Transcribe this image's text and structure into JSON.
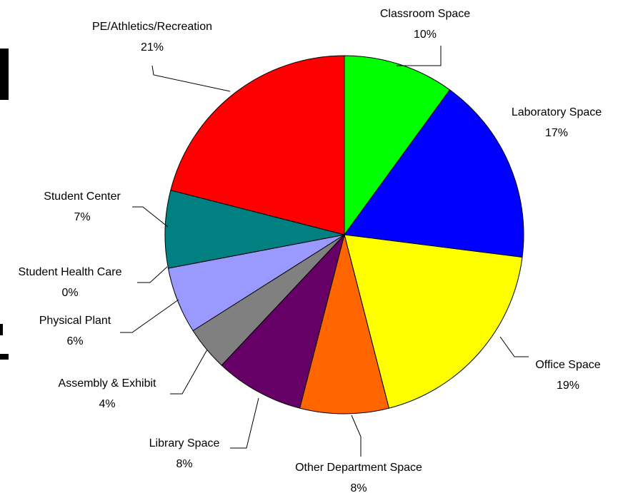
{
  "chart_data": {
    "type": "pie",
    "categories": [
      "Classroom Space",
      "Laboratory Space",
      "Office Space",
      "Other Department Space",
      "Library Space",
      "Assembly & Exhibit",
      "Physical Plant",
      "Student Health Care",
      "Student Center",
      "PE/Athletics/Recreation"
    ],
    "values": [
      10,
      17,
      19,
      8,
      8,
      4,
      6,
      0,
      7,
      21
    ],
    "value_labels": [
      "10%",
      "17%",
      "19%",
      "8%",
      "8%",
      "4%",
      "6%",
      "0%",
      "7%",
      "21%"
    ],
    "colors": [
      "#00ff00",
      "#0000ff",
      "#ffff00",
      "#ff6600",
      "#660066",
      "#808080",
      "#9999ff",
      "#000000",
      "#008080",
      "#ff0000"
    ]
  }
}
